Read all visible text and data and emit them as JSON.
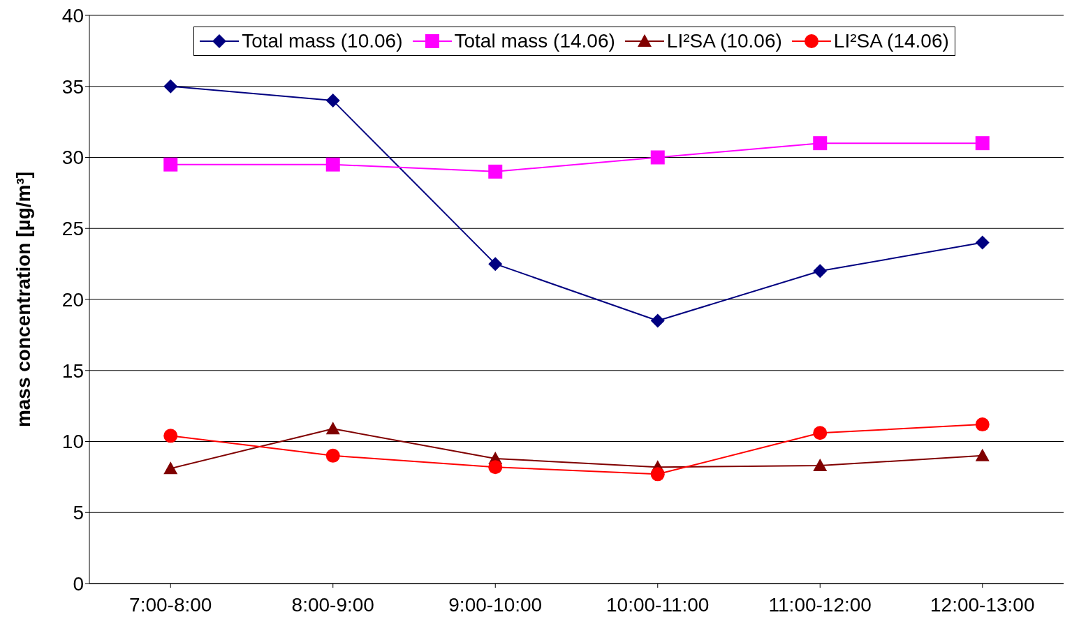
{
  "chart_data": {
    "type": "line",
    "ylabel": "mass concentration [µg/m³]",
    "categories": [
      "7:00-8:00",
      "8:00-9:00",
      "9:00-10:00",
      "10:00-11:00",
      "11:00-12:00",
      "12:00-13:00"
    ],
    "series": [
      {
        "name": "Total mass (10.06)",
        "color": "#000080",
        "marker": "diamond",
        "values": [
          35,
          34,
          22.5,
          18.5,
          22,
          24
        ]
      },
      {
        "name": "Total mass (14.06)",
        "color": "#ff00ff",
        "marker": "square",
        "values": [
          29.5,
          29.5,
          29,
          30,
          31,
          31
        ]
      },
      {
        "name": "LI²SA (10.06)",
        "color": "#800000",
        "marker": "triangle",
        "values": [
          8.1,
          10.9,
          8.8,
          8.2,
          8.3,
          9.0
        ]
      },
      {
        "name": "LI²SA (14.06)",
        "color": "#ff0000",
        "marker": "circle",
        "values": [
          10.4,
          9.0,
          8.2,
          7.7,
          10.6,
          11.2
        ]
      }
    ],
    "ylim": [
      0,
      40
    ],
    "yticks": [
      0,
      5,
      10,
      15,
      20,
      25,
      30,
      35,
      40
    ],
    "grid": "y",
    "legend": "top",
    "line_style": "solid"
  }
}
